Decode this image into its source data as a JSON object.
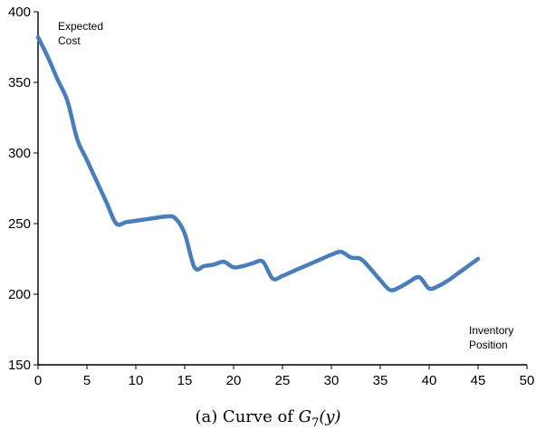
{
  "chart_data": {
    "type": "line",
    "title": "",
    "xlabel": "Inventory Position",
    "ylabel": "Expected Cost",
    "ylabel_lines": [
      "Expected",
      "Cost"
    ],
    "xlabel_lines": [
      "Inventory",
      "Position"
    ],
    "xlim": [
      0,
      50
    ],
    "ylim": [
      150,
      400
    ],
    "x_ticks": [
      "0",
      "5",
      "10",
      "15",
      "20",
      "25",
      "30",
      "35",
      "40",
      "45",
      "50"
    ],
    "y_ticks": [
      "150",
      "200",
      "250",
      "300",
      "350",
      "400"
    ],
    "grid": false,
    "legend": "none",
    "line_color": "#4a7ebb",
    "series": [
      {
        "x": [
          0,
          1,
          2,
          3,
          4,
          5,
          6,
          7,
          8,
          9,
          10,
          11,
          12,
          13,
          14,
          15,
          16,
          17,
          18,
          19,
          20,
          21,
          22,
          23,
          24,
          25,
          26,
          27,
          28,
          29,
          30,
          31,
          32,
          33,
          34,
          35,
          36,
          37,
          38,
          39,
          40,
          41,
          42,
          43,
          44,
          45
        ],
        "values": [
          382,
          368,
          352,
          337,
          310,
          295,
          280,
          265,
          250,
          251,
          252,
          253,
          254,
          255,
          254,
          243,
          219,
          220,
          221,
          223,
          219,
          220,
          222,
          223,
          211,
          213,
          216,
          219,
          222,
          225,
          228,
          230,
          226,
          225,
          218,
          210,
          203,
          205,
          209,
          212,
          204,
          206,
          210,
          215,
          220,
          225
        ]
      }
    ],
    "caption_prefix": "(a) Curve of ",
    "caption_math": "G",
    "caption_sub": "7",
    "caption_arg": "(y)"
  }
}
